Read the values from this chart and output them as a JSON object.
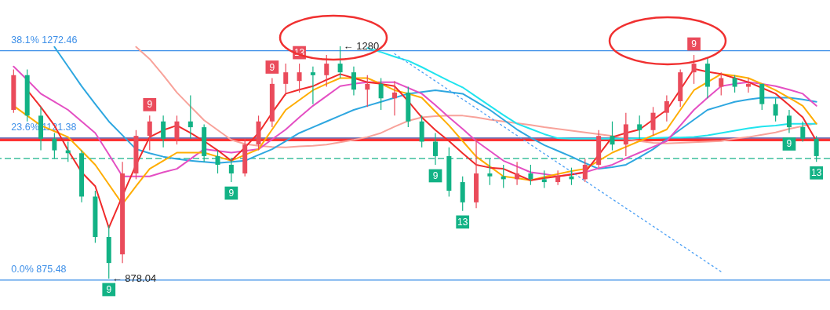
{
  "chart_data": {
    "type": "candlestick",
    "tick_labels": false,
    "categories": [
      null,
      null,
      null,
      null,
      null,
      null,
      null,
      null,
      null,
      null,
      null,
      null,
      null,
      null,
      null,
      null,
      null,
      null,
      null,
      null,
      null,
      null,
      null,
      null,
      null,
      null,
      null,
      null,
      null,
      null,
      null,
      null,
      null,
      null,
      null,
      null,
      null,
      null,
      null,
      null,
      null,
      null,
      null,
      null,
      null,
      null,
      null,
      null,
      null,
      null,
      null,
      null,
      null,
      null,
      null,
      null,
      null,
      null,
      null,
      null
    ],
    "ohlc": [
      [
        1170,
        1240,
        1165,
        1230
      ],
      [
        1230,
        1240,
        1150,
        1160
      ],
      [
        1160,
        1175,
        1100,
        1120
      ],
      [
        1120,
        1130,
        1085,
        1100
      ],
      [
        1100,
        1115,
        1080,
        1095
      ],
      [
        1095,
        1100,
        1010,
        1020
      ],
      [
        1020,
        1030,
        940,
        950
      ],
      [
        950,
        970,
        878.04,
        905
      ],
      [
        920,
        1080,
        905,
        1060
      ],
      [
        1060,
        1135,
        1050,
        1125
      ],
      [
        1125,
        1160,
        1100,
        1150
      ],
      [
        1150,
        1160,
        1105,
        1120
      ],
      [
        1120,
        1160,
        1110,
        1150
      ],
      [
        1150,
        1195,
        1120,
        1140
      ],
      [
        1140,
        1145,
        1080,
        1090
      ],
      [
        1090,
        1100,
        1060,
        1075
      ],
      [
        1075,
        1085,
        1045,
        1060
      ],
      [
        1060,
        1120,
        1055,
        1110
      ],
      [
        1110,
        1160,
        1100,
        1150
      ],
      [
        1150,
        1225,
        1140,
        1215
      ],
      [
        1215,
        1250,
        1195,
        1235
      ],
      [
        1220,
        1250,
        1200,
        1235
      ],
      [
        1235,
        1245,
        1180,
        1230
      ],
      [
        1230,
        1265,
        1210,
        1250
      ],
      [
        1250,
        1280,
        1225,
        1235
      ],
      [
        1235,
        1245,
        1195,
        1205
      ],
      [
        1205,
        1230,
        1175,
        1215
      ],
      [
        1215,
        1225,
        1170,
        1190
      ],
      [
        1190,
        1220,
        1160,
        1200
      ],
      [
        1200,
        1210,
        1140,
        1150
      ],
      [
        1150,
        1160,
        1105,
        1115
      ],
      [
        1115,
        1130,
        1075,
        1090
      ],
      [
        1090,
        1105,
        1020,
        1030
      ],
      [
        1045,
        1055,
        995,
        1010
      ],
      [
        1010,
        1120,
        1000,
        1060
      ],
      [
        1060,
        1085,
        1040,
        1055
      ],
      [
        1055,
        1075,
        1035,
        1050
      ],
      [
        1050,
        1080,
        1040,
        1060
      ],
      [
        1060,
        1075,
        1040,
        1050
      ],
      [
        1050,
        1065,
        1035,
        1045
      ],
      [
        1045,
        1065,
        1040,
        1055
      ],
      [
        1055,
        1070,
        1040,
        1050
      ],
      [
        1050,
        1085,
        1045,
        1075
      ],
      [
        1075,
        1135,
        1070,
        1125
      ],
      [
        1125,
        1150,
        1100,
        1110
      ],
      [
        1110,
        1165,
        1090,
        1145
      ],
      [
        1145,
        1160,
        1120,
        1135
      ],
      [
        1135,
        1175,
        1125,
        1165
      ],
      [
        1165,
        1195,
        1150,
        1185
      ],
      [
        1185,
        1240,
        1175,
        1235
      ],
      [
        1235,
        1265,
        1215,
        1250
      ],
      [
        1250,
        1260,
        1190,
        1210
      ],
      [
        1210,
        1235,
        1195,
        1225
      ],
      [
        1225,
        1230,
        1200,
        1210
      ],
      [
        1210,
        1225,
        1200,
        1215
      ],
      [
        1215,
        1215,
        1170,
        1180
      ],
      [
        1180,
        1190,
        1150,
        1160
      ],
      [
        1160,
        1170,
        1130,
        1140
      ],
      [
        1140,
        1150,
        1115,
        1120
      ],
      [
        1120,
        1125,
        1080,
        1090
      ]
    ],
    "value_labels": [
      null,
      null,
      null,
      null,
      null,
      null,
      null,
      "9",
      null,
      null,
      "9",
      null,
      null,
      null,
      null,
      null,
      "9",
      null,
      null,
      "9",
      null,
      "13",
      null,
      null,
      null,
      null,
      null,
      null,
      null,
      null,
      null,
      "9",
      null,
      "13",
      null,
      null,
      null,
      null,
      null,
      null,
      null,
      null,
      null,
      null,
      null,
      null,
      null,
      null,
      null,
      null,
      "9",
      null,
      null,
      null,
      null,
      null,
      null,
      "9",
      null,
      "13"
    ],
    "series": [
      {
        "type": "line",
        "color": "#f8a29a",
        "values": [
          null,
          null,
          null,
          null,
          null,
          null,
          null,
          null,
          null,
          1279,
          1258,
          1230,
          1200,
          1176,
          1152,
          1135,
          1118,
          1111,
          1108,
          1106,
          1105,
          1107,
          1108,
          1110,
          1114,
          1118,
          1123,
          1130,
          1141,
          1151,
          1157,
          1159,
          1160,
          1160,
          1157,
          1153,
          1150,
          1147,
          1144,
          1140,
          1137,
          1134,
          1131,
          1128,
          1125,
          1120,
          1116,
          1113,
          1112,
          1113,
          1114,
          1115,
          1116,
          1120,
          1123,
          1127,
          1131,
          1137,
          1142,
          1147
        ]
      },
      {
        "type": "line",
        "color": "#20e4ee",
        "values": [
          null,
          null,
          null,
          null,
          null,
          null,
          null,
          null,
          null,
          null,
          null,
          null,
          null,
          null,
          null,
          null,
          null,
          null,
          null,
          null,
          null,
          null,
          null,
          null,
          null,
          null,
          1277,
          1270,
          1262,
          1255,
          1244,
          1232,
          1220,
          1209,
          1193,
          1177,
          1161,
          1146,
          1137,
          1128,
          1121,
          1120,
          1120,
          1120,
          1120,
          1120,
          1121,
          1121,
          1122,
          1122,
          1123,
          1126,
          1130,
          1134,
          1138,
          1141,
          1143,
          1146,
          1146,
          1146
        ]
      },
      {
        "type": "line",
        "color": "#2ea7e0",
        "values": [
          null,
          null,
          null,
          1279,
          1245,
          1211,
          1180,
          1150,
          1126,
          1102,
          1095,
          1089,
          1085,
          1082,
          1080,
          1078,
          1080,
          1082,
          1092,
          1102,
          1116,
          1130,
          1140,
          1150,
          1160,
          1170,
          1177,
          1184,
          1191,
          1198,
          1201,
          1204,
          1201,
          1198,
          1184,
          1170,
          1153,
          1136,
          1122,
          1109,
          1099,
          1089,
          1078,
          1068,
          1071,
          1075,
          1088,
          1102,
          1119,
          1136,
          1153,
          1170,
          1177,
          1184,
          1188,
          1191,
          1191,
          1191,
          1188,
          1184
        ]
      },
      {
        "type": "line",
        "color": "#e44fc3",
        "values": [
          1245,
          1222,
          1198,
          1184,
          1170,
          1150,
          1130,
          1093,
          1055,
          1055,
          1055,
          1062,
          1068,
          1085,
          1102,
          1099,
          1096,
          1099,
          1102,
          1119,
          1136,
          1157,
          1177,
          1194,
          1211,
          1215,
          1218,
          1218,
          1218,
          1208,
          1198,
          1178,
          1157,
          1137,
          1116,
          1099,
          1082,
          1072,
          1062,
          1059,
          1055,
          1059,
          1062,
          1069,
          1075,
          1086,
          1096,
          1106,
          1116,
          1143,
          1170,
          1191,
          1211,
          1215,
          1218,
          1215,
          1211,
          1205,
          1198,
          1177
        ]
      },
      {
        "type": "line",
        "color": "#ffad00",
        "values": [
          1177,
          1160,
          1143,
          1133,
          1123,
          1099,
          1075,
          1041,
          1007,
          1038,
          1068,
          1082,
          1096,
          1096,
          1096,
          1089,
          1082,
          1092,
          1102,
          1136,
          1170,
          1187,
          1204,
          1215,
          1225,
          1225,
          1225,
          1215,
          1204,
          1198,
          1191,
          1167,
          1143,
          1116,
          1089,
          1072,
          1055,
          1052,
          1048,
          1054,
          1059,
          1064,
          1068,
          1082,
          1096,
          1106,
          1116,
          1126,
          1136,
          1170,
          1204,
          1218,
          1232,
          1229,
          1225,
          1215,
          1204,
          1191,
          1177,
          1146
        ]
      },
      {
        "type": "line",
        "color": "#f02a2a",
        "values": [
          null,
          1204,
          1175,
          1143,
          1100,
          1062,
          1038,
          966,
          1021,
          1075,
          1123,
          1135,
          1143,
          1130,
          1116,
          1100,
          1082,
          1105,
          1130,
          1165,
          1198,
          1205,
          1211,
          1222,
          1232,
          1225,
          1218,
          1215,
          1211,
          1185,
          1157,
          1135,
          1116,
          1095,
          1075,
          1070,
          1068,
          1058,
          1048,
          1052,
          1055,
          1058,
          1062,
          1092,
          1123,
          1130,
          1136,
          1153,
          1170,
          1205,
          1241,
          1236,
          1232,
          1225,
          1218,
          1208,
          1198,
          1178,
          1157,
          1116
        ]
      },
      {
        "type": "line",
        "color": "#4a9ff5",
        "line_style": "dotted",
        "values": [
          null,
          null,
          null,
          null,
          null,
          null,
          null,
          null,
          null,
          null,
          null,
          null,
          null,
          null,
          null,
          null,
          null,
          null,
          null,
          null,
          null,
          null,
          null,
          null,
          null,
          null,
          null,
          null,
          1267,
          null,
          null,
          null,
          null,
          null,
          null,
          null,
          null,
          null,
          null,
          null,
          null,
          null,
          null,
          null,
          null,
          null,
          null,
          null,
          null,
          null,
          null,
          null,
          890,
          null,
          null,
          null,
          null,
          null,
          null,
          null
        ]
      }
    ],
    "ref_lines": [
      {
        "axis": "y",
        "value": 1272.46,
        "label": "38.1% 1272.46",
        "color": "#3d8fe8"
      },
      {
        "axis": "y",
        "value": 1121.38,
        "label": "23.6% 1121.38",
        "color": "#3d8fe8"
      },
      {
        "axis": "y",
        "value": 875.48,
        "label": "0.0% 875.48",
        "color": "#3d8fe8"
      },
      {
        "axis": "y",
        "value": 1119,
        "color": "#ff3333"
      },
      {
        "axis": "y",
        "value": 1086,
        "color": "#19b38a",
        "line_style": "dashed"
      }
    ],
    "annotations": [
      "← 1280",
      "← 878.04"
    ]
  }
}
